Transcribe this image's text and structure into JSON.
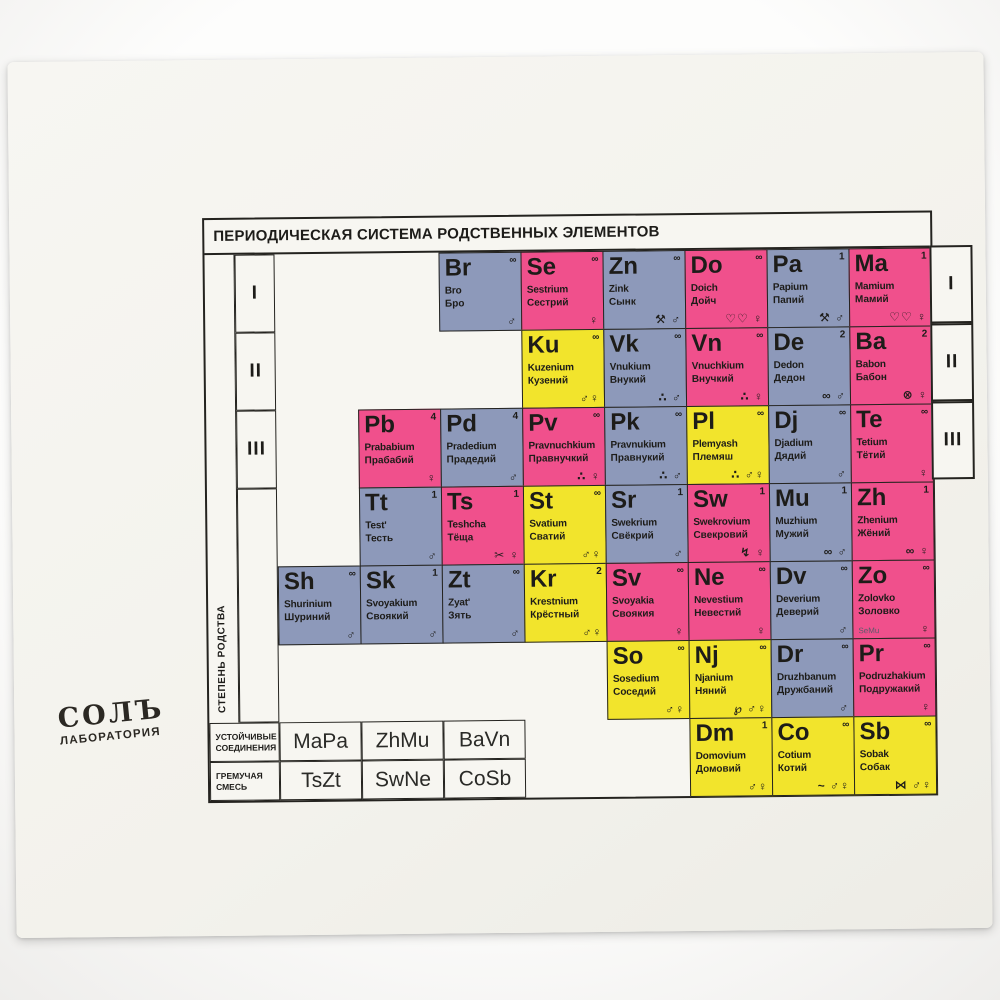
{
  "card": {
    "title": "ПЕРИОДИЧЕСКАЯ СИСТЕМА РОДСТВЕННЫХ ЭЛЕМЕНТОВ",
    "side_label": "СТЕПЕНЬ РОДСТВА",
    "row_numerals": [
      "I",
      "II",
      "III"
    ],
    "colors": {
      "pink": "#f0508c",
      "blue": "#8d99ba",
      "yellow": "#f2e42c",
      "text": "#1d1c19",
      "card_bg": "#f4f3ee"
    },
    "logo": {
      "line1": "СОЛЪ",
      "line2": "ЛАБОРАТОРИЯ"
    },
    "legend": {
      "rows": [
        {
          "label": "УСТОЙЧИВЫЕ СОЕДИНЕНИЯ",
          "cells": [
            "MaPa",
            "ZhMu",
            "BaVn"
          ]
        },
        {
          "label": "ГРЕМУЧАЯ СМЕСЬ",
          "cells": [
            "TsZt",
            "SwNe",
            "CoSb"
          ]
        }
      ]
    },
    "elements": [
      {
        "symbol": "Br",
        "latin": "Bro",
        "russian": "Бро",
        "sup": "∞",
        "color": "blue",
        "icons": "♂",
        "icon_names": "male-icon",
        "row": 1,
        "col": 2
      },
      {
        "symbol": "Se",
        "latin": "Sestrium",
        "russian": "Сестрий",
        "sup": "∞",
        "color": "pink",
        "icons": "♀",
        "icon_names": "mirror-icon",
        "row": 1,
        "col": 3
      },
      {
        "symbol": "Zn",
        "latin": "Zink",
        "russian": "Сынк",
        "sup": "∞",
        "color": "blue",
        "icons": "⚒ ♂",
        "icon_names": "tools-icon male-icon",
        "row": 1,
        "col": 4
      },
      {
        "symbol": "Do",
        "latin": "Doich",
        "russian": "Дойч",
        "sup": "∞",
        "color": "pink",
        "icons": "♡♡ ♀",
        "icon_names": "hearts-icon mirror-icon",
        "row": 1,
        "col": 5
      },
      {
        "symbol": "Pa",
        "latin": "Papium",
        "russian": "Папий",
        "sup": "1",
        "color": "blue",
        "icons": "⚒ ♂",
        "icon_names": "tools-icon male-icon",
        "row": 1,
        "col": 6
      },
      {
        "symbol": "Ma",
        "latin": "Mamium",
        "russian": "Мамий",
        "sup": "1",
        "color": "pink",
        "icons": "♡♡ ♀",
        "icon_names": "hearts-icon mirror-icon",
        "row": 1,
        "col": 7
      },
      {
        "symbol": "Ku",
        "latin": "Kuzenium",
        "russian": "Кузений",
        "sup": "∞",
        "color": "yellow",
        "icons": "♂♀",
        "icon_names": "male-icon female-icon",
        "row": 2,
        "col": 3
      },
      {
        "symbol": "Vk",
        "latin": "Vnukium",
        "russian": "Внукий",
        "sup": "∞",
        "color": "blue",
        "icons": "∴ ♂",
        "icon_names": "balloons-icon male-icon",
        "row": 2,
        "col": 4
      },
      {
        "symbol": "Vn",
        "latin": "Vnuchkium",
        "russian": "Внучкий",
        "sup": "∞",
        "color": "pink",
        "icons": "∴ ♀",
        "icon_names": "balloons-icon mirror-icon",
        "row": 2,
        "col": 5
      },
      {
        "symbol": "De",
        "latin": "Dedon",
        "russian": "Дедон",
        "sup": "2",
        "color": "blue",
        "icons": "∞ ♂",
        "icon_names": "glasses-icon male-icon",
        "row": 2,
        "col": 6
      },
      {
        "symbol": "Ba",
        "latin": "Babon",
        "russian": "Бабон",
        "sup": "2",
        "color": "pink",
        "icons": "⊗ ♀",
        "icon_names": "yarn-icon mirror-icon",
        "row": 2,
        "col": 7
      },
      {
        "symbol": "Pb",
        "latin": "Prababium",
        "russian": "Прабабий",
        "sup": "4",
        "color": "pink",
        "icons": "♀",
        "icon_names": "mirror-icon",
        "row": 3,
        "col": 1
      },
      {
        "symbol": "Pd",
        "latin": "Pradedium",
        "russian": "Прадедий",
        "sup": "4",
        "color": "blue",
        "icons": "♂",
        "icon_names": "male-icon",
        "row": 3,
        "col": 2
      },
      {
        "symbol": "Pv",
        "latin": "Pravnuchkium",
        "russian": "Правнучкий",
        "sup": "∞",
        "color": "pink",
        "icons": "∴ ♀",
        "icon_names": "balloons-icon mirror-icon",
        "row": 3,
        "col": 3
      },
      {
        "symbol": "Pk",
        "latin": "Pravnukium",
        "russian": "Правнукий",
        "sup": "∞",
        "color": "blue",
        "icons": "∴ ♂",
        "icon_names": "balloons-icon male-icon",
        "row": 3,
        "col": 4
      },
      {
        "symbol": "Pl",
        "latin": "Plemyash",
        "russian": "Племяш",
        "sup": "∞",
        "color": "yellow",
        "icons": "∴ ♂♀",
        "icon_names": "balloons-icon male-icon female-icon",
        "row": 3,
        "col": 5
      },
      {
        "symbol": "Dj",
        "latin": "Djadium",
        "russian": "Дядий",
        "sup": "∞",
        "color": "blue",
        "icons": "♂",
        "icon_names": "male-icon",
        "row": 3,
        "col": 6
      },
      {
        "symbol": "Te",
        "latin": "Tetium",
        "russian": "Тётий",
        "sup": "∞",
        "color": "pink",
        "icons": "♀",
        "icon_names": "mirror-icon",
        "row": 3,
        "col": 7
      },
      {
        "symbol": "Tt",
        "latin": "Test'",
        "russian": "Тесть",
        "sup": "1",
        "color": "blue",
        "icons": "♂",
        "icon_names": "male-icon",
        "row": 4,
        "col": 1
      },
      {
        "symbol": "Ts",
        "latin": "Teshcha",
        "russian": "Тёща",
        "sup": "1",
        "color": "pink",
        "icons": "✂ ♀",
        "icon_names": "scissors-icon mirror-icon",
        "row": 4,
        "col": 2
      },
      {
        "symbol": "St",
        "latin": "Svatium",
        "russian": "Сватий",
        "sup": "∞",
        "color": "yellow",
        "icons": "♂♀",
        "icon_names": "male-icon female-icon",
        "row": 4,
        "col": 3
      },
      {
        "symbol": "Sr",
        "latin": "Swekrium",
        "russian": "Свёкрий",
        "sup": "1",
        "color": "blue",
        "icons": "♂",
        "icon_names": "male-icon",
        "row": 4,
        "col": 4
      },
      {
        "symbol": "Sw",
        "latin": "Swekrovium",
        "russian": "Свекровий",
        "sup": "1",
        "color": "pink",
        "icons": "↯ ♀",
        "icon_names": "lightning-icon mirror-icon",
        "row": 4,
        "col": 5
      },
      {
        "symbol": "Mu",
        "latin": "Muzhium",
        "russian": "Мужий",
        "sup": "1",
        "color": "blue",
        "icons": "∞ ♂",
        "icon_names": "rings-icon male-icon",
        "row": 4,
        "col": 6
      },
      {
        "symbol": "Zh",
        "latin": "Zhenium",
        "russian": "Жёний",
        "sup": "1",
        "color": "pink",
        "icons": "∞ ♀",
        "icon_names": "rings-icon mirror-icon",
        "row": 4,
        "col": 7
      },
      {
        "symbol": "Sh",
        "latin": "Shurinium",
        "russian": "Шуриний",
        "sup": "∞",
        "color": "blue",
        "icons": "♂",
        "icon_names": "male-icon",
        "row": 5,
        "col": 0
      },
      {
        "symbol": "Sk",
        "latin": "Svoyakium",
        "russian": "Своякий",
        "sup": "1",
        "color": "blue",
        "icons": "♂",
        "icon_names": "male-icon",
        "row": 5,
        "col": 1
      },
      {
        "symbol": "Zt",
        "latin": "Zyat'",
        "russian": "Зять",
        "sup": "∞",
        "color": "blue",
        "icons": "♂",
        "icon_names": "male-icon",
        "row": 5,
        "col": 2
      },
      {
        "symbol": "Kr",
        "latin": "Krestnium",
        "russian": "Крёстный",
        "sup": "2",
        "color": "yellow",
        "icons": "♂♀",
        "icon_names": "male-icon female-icon",
        "row": 5,
        "col": 3
      },
      {
        "symbol": "Sv",
        "latin": "Svoyakia",
        "russian": "Своякия",
        "sup": "∞",
        "color": "pink",
        "icons": "♀",
        "icon_names": "mirror-icon",
        "row": 5,
        "col": 4
      },
      {
        "symbol": "Ne",
        "latin": "Nevestium",
        "russian": "Невестий",
        "sup": "∞",
        "color": "pink",
        "icons": "♀",
        "icon_names": "mirror-icon",
        "row": 5,
        "col": 5
      },
      {
        "symbol": "Dv",
        "latin": "Deverium",
        "russian": "Деверий",
        "sup": "∞",
        "color": "blue",
        "icons": "♂",
        "icon_names": "male-icon",
        "row": 5,
        "col": 6
      },
      {
        "symbol": "Zo",
        "latin": "Zolovko",
        "russian": "Золовко",
        "sup": "∞",
        "color": "pink",
        "icons": "♀",
        "icon_names": "mirror-icon",
        "note": "SeMu",
        "row": 5,
        "col": 7
      },
      {
        "symbol": "So",
        "latin": "Sosedium",
        "russian": "Соседий",
        "sup": "∞",
        "color": "yellow",
        "icons": "♂♀",
        "icon_names": "male-icon female-icon",
        "row": 6,
        "col": 4
      },
      {
        "symbol": "Nj",
        "latin": "Njanium",
        "russian": "Няний",
        "sup": "∞",
        "color": "yellow",
        "icons": "℘ ♂♀",
        "icon_names": "pacifier-icon male-icon female-icon",
        "row": 6,
        "col": 5
      },
      {
        "symbol": "Dr",
        "latin": "Druzhbanum",
        "russian": "Дружбаний",
        "sup": "∞",
        "color": "blue",
        "icons": "♂",
        "icon_names": "male-icon",
        "row": 6,
        "col": 6
      },
      {
        "symbol": "Pr",
        "latin": "Podruzhakium",
        "russian": "Подружакий",
        "sup": "∞",
        "color": "pink",
        "icons": "♀",
        "icon_names": "mirror-icon",
        "row": 6,
        "col": 7
      },
      {
        "symbol": "Dm",
        "latin": "Domovium",
        "russian": "Домовий",
        "sup": "1",
        "color": "yellow",
        "icons": "♂♀",
        "icon_names": "male-icon female-icon",
        "row": 7,
        "col": 5
      },
      {
        "symbol": "Co",
        "latin": "Cotium",
        "russian": "Котий",
        "sup": "∞",
        "color": "yellow",
        "icons": "~ ♂♀",
        "icon_names": "mouse-icon male-icon female-icon",
        "row": 7,
        "col": 6
      },
      {
        "symbol": "Sb",
        "latin": "Sobak",
        "russian": "Собак",
        "sup": "∞",
        "color": "yellow",
        "icons": "⋈ ♂♀",
        "icon_names": "bone-icon male-icon female-icon",
        "row": 7,
        "col": 7
      }
    ]
  }
}
